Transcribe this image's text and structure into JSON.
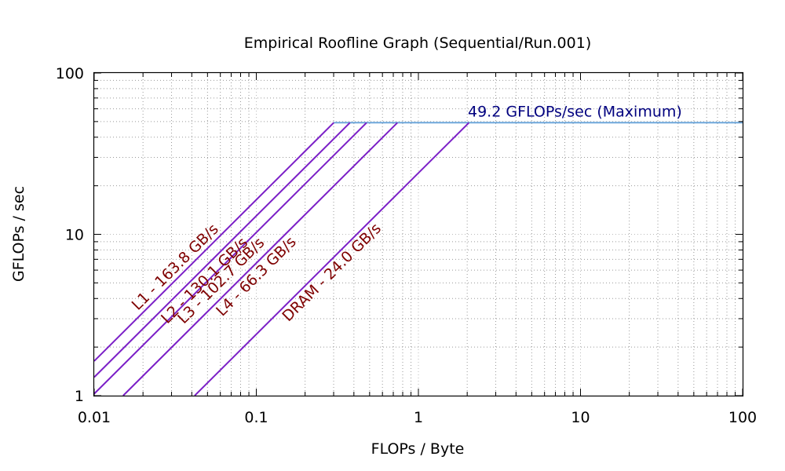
{
  "chart_data": {
    "type": "line",
    "title": "Empirical Roofline Graph (Sequential/Run.001)",
    "xlabel": "FLOPs / Byte",
    "ylabel": "GFLOPs / sec",
    "x_scale": "log",
    "y_scale": "log",
    "xlim": [
      0.01,
      100
    ],
    "ylim": [
      1,
      100
    ],
    "grid": true,
    "x_ticks": [
      "0.01",
      "0.1",
      "1",
      "10",
      "100"
    ],
    "x_tick_values": [
      0.01,
      0.1,
      1,
      10,
      100
    ],
    "y_ticks": [
      "1",
      "10",
      "100"
    ],
    "y_tick_values": [
      1,
      10,
      100
    ],
    "compute_ceiling": {
      "label": "49.2 GFLOPs/sec (Maximum)",
      "gflops": 49.2,
      "color": "#6fa8dc",
      "label_color": "#00007f"
    },
    "series": [
      {
        "name": "L1 - 163.8 GB/s",
        "bandwidth": 163.8,
        "color": "#7b1fc7",
        "label_color": "#7f0000"
      },
      {
        "name": "L2 - 130.1 GB/s",
        "bandwidth": 130.1,
        "color": "#7b1fc7",
        "label_color": "#7f0000"
      },
      {
        "name": "L3 - 102.7 GB/s",
        "bandwidth": 102.7,
        "color": "#7b1fc7",
        "label_color": "#7f0000"
      },
      {
        "name": "L4 - 66.3 GB/s",
        "bandwidth": 66.3,
        "color": "#7b1fc7",
        "label_color": "#7f0000"
      },
      {
        "name": "DRAM - 24.0 GB/s",
        "bandwidth": 24.0,
        "color": "#7b1fc7",
        "label_color": "#7f0000"
      }
    ]
  }
}
